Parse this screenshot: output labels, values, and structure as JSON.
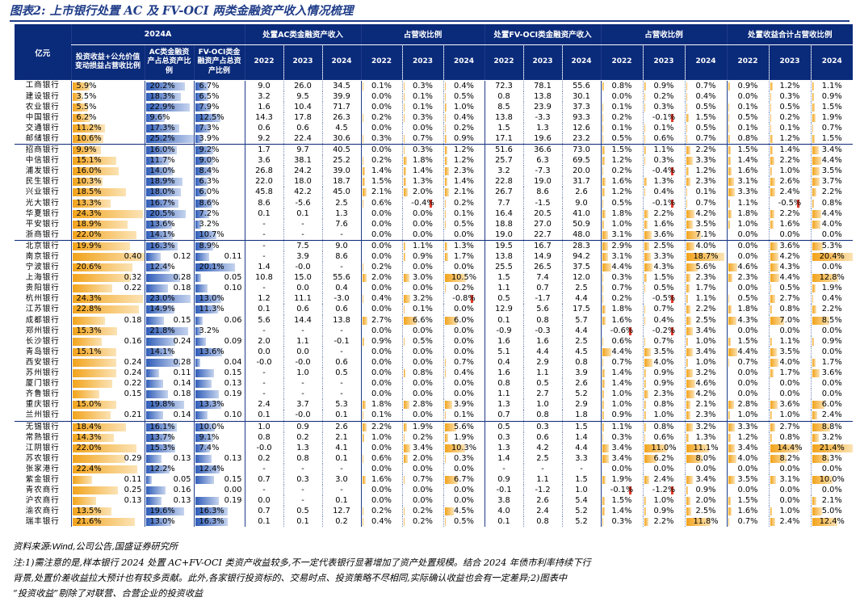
{
  "title": "图表2: 上市银行处置 AC 及 FV-OCI 两类金融资产收入情况梳理",
  "header": {
    "unit": "亿元",
    "g2024": "2024A",
    "gAC": "处置AC类金融资产收入",
    "gACr": "占营收比例",
    "gFV": "处置FV-OCI类金融资产收入",
    "gFVr": "占营收比例",
    "gTot": "处置收益合计占营收比例",
    "c1": "投资收益+公允价值变动损益占营收比例",
    "c2": "AC类金融资产占总资产比例",
    "c3": "FV-OCI类金融资产占总资产比例",
    "years": [
      "2022",
      "2023",
      "2024"
    ]
  },
  "rows": [
    [
      "工商银行",
      "5.9%",
      "20.2%",
      "6.7%",
      "9.0",
      "26.0",
      "34.5",
      "0.1%",
      "0.3%",
      "0.4%",
      "72.3",
      "78.1",
      "55.6",
      "0.8%",
      "0.9%",
      "0.7%",
      "0.9%",
      "1.2%",
      "1.1%"
    ],
    [
      "建设银行",
      "3.5%",
      "18.3%",
      "6.5%",
      "3.2",
      "9.5",
      "39.9",
      "0.0%",
      "0.1%",
      "0.5%",
      "0.8",
      "13.8",
      "30.1",
      "0.0%",
      "0.2%",
      "0.4%",
      "0.0%",
      "0.3%",
      "0.9%"
    ],
    [
      "农业银行",
      "5.5%",
      "22.9%",
      "7.9%",
      "1.6",
      "10.4",
      "71.7",
      "0.0%",
      "0.1%",
      "1.0%",
      "8.5",
      "23.9",
      "37.3",
      "0.1%",
      "0.3%",
      "0.5%",
      "0.1%",
      "0.5%",
      "1.5%"
    ],
    [
      "中国银行",
      "6.2%",
      "9.6%",
      "12.5%",
      "14.3",
      "17.8",
      "26.3",
      "0.2%",
      "0.3%",
      "0.4%",
      "13.8",
      "-3.3",
      "93.3",
      "0.2%",
      "-0.1%",
      "1.5%",
      "0.5%",
      "0.2%",
      "1.9%"
    ],
    [
      "交通银行",
      "11.2%",
      "17.3%",
      "7.3%",
      "0.6",
      "0.6",
      "4.5",
      "0.0%",
      "0.0%",
      "0.2%",
      "1.5",
      "1.3",
      "12.6",
      "0.1%",
      "0.1%",
      "0.5%",
      "0.1%",
      "0.1%",
      "0.7%"
    ],
    [
      "邮储银行",
      "10.6%",
      "25.2%",
      "3.9%",
      "9.2",
      "22.4",
      "30.6",
      "0.3%",
      "0.7%",
      "0.9%",
      "17.1",
      "19.6",
      "23.2",
      "0.5%",
      "0.6%",
      "0.7%",
      "0.8%",
      "1.2%",
      "1.5%"
    ],
    [
      "招商银行",
      "9.9%",
      "16.0%",
      "9.2%",
      "1.7",
      "9.7",
      "40.5",
      "0.0%",
      "0.3%",
      "1.2%",
      "51.6",
      "36.6",
      "73.0",
      "1.5%",
      "1.1%",
      "2.2%",
      "1.5%",
      "1.4%",
      "3.4%"
    ],
    [
      "中信银行",
      "15.1%",
      "11.7%",
      "9.0%",
      "3.6",
      "38.1",
      "25.2",
      "0.2%",
      "1.8%",
      "1.2%",
      "25.7",
      "6.3",
      "69.5",
      "1.2%",
      "0.3%",
      "3.3%",
      "1.4%",
      "2.2%",
      "4.4%"
    ],
    [
      "浦发银行",
      "16.0%",
      "14.0%",
      "8.4%",
      "26.8",
      "24.2",
      "39.0",
      "1.4%",
      "1.4%",
      "2.3%",
      "3.2",
      "-7.3",
      "20.0",
      "0.2%",
      "-0.4%",
      "1.2%",
      "1.6%",
      "1.0%",
      "3.5%"
    ],
    [
      "民生银行",
      "10.3%",
      "18.9%",
      "6.3%",
      "22.0",
      "18.0",
      "18.7",
      "1.5%",
      "1.3%",
      "1.4%",
      "22.8",
      "19.0",
      "31.7",
      "1.6%",
      "1.3%",
      "2.3%",
      "3.1%",
      "2.6%",
      "3.7%"
    ],
    [
      "兴业银行",
      "18.5%",
      "18.0%",
      "6.0%",
      "45.8",
      "42.2",
      "45.0",
      "2.1%",
      "2.0%",
      "2.1%",
      "26.7",
      "8.6",
      "2.6",
      "1.2%",
      "0.4%",
      "0.1%",
      "3.3%",
      "2.4%",
      "2.2%"
    ],
    [
      "光大银行",
      "13.3%",
      "16.7%",
      "8.6%",
      "8.6",
      "-5.6",
      "2.5",
      "0.6%",
      "-0.4%",
      "0.2%",
      "7.7",
      "-1.5",
      "9.0",
      "0.5%",
      "-0.1%",
      "0.7%",
      "1.1%",
      "-0.5%",
      "0.8%"
    ],
    [
      "华夏银行",
      "24.3%",
      "20.5%",
      "7.2%",
      "0.1",
      "0.1",
      "1.3",
      "0.0%",
      "0.0%",
      "0.1%",
      "16.4",
      "20.5",
      "41.0",
      "1.8%",
      "2.2%",
      "4.2%",
      "1.8%",
      "2.2%",
      "4.4%"
    ],
    [
      "平安银行",
      "18.9%",
      "13.6%",
      "3.2%",
      "-",
      "-",
      "7.6",
      "0.0%",
      "0.0%",
      "0.5%",
      "18.8",
      "27.0",
      "50.9",
      "1.0%",
      "1.6%",
      "3.5%",
      "1.0%",
      "1.6%",
      "4.0%"
    ],
    [
      "浙商银行",
      "22.0%",
      "14.1%",
      "10.7%",
      "-",
      "-",
      "-",
      "0.0%",
      "0.0%",
      "0.0%",
      "19.0",
      "22.7",
      "48.0",
      "3.1%",
      "3.6%",
      "7.1%",
      "0.0%",
      "0.0%",
      "0.0%"
    ],
    [
      "北京银行",
      "19.9%",
      "16.3%",
      "8.9%",
      "-",
      "7.5",
      "9.0",
      "0.0%",
      "1.1%",
      "1.3%",
      "19.5",
      "16.7",
      "28.3",
      "2.9%",
      "2.5%",
      "4.0%",
      "0.0%",
      "3.6%",
      "5.3%"
    ],
    [
      "南京银行",
      "0.40",
      "0.12",
      "0.11",
      "-",
      "3.9",
      "8.6",
      "0.0%",
      "0.9%",
      "1.7%",
      "13.8",
      "14.9",
      "94.2",
      "3.1%",
      "3.3%",
      "18.7%",
      "0.0%",
      "4.2%",
      "20.4%"
    ],
    [
      "宁波银行",
      "20.6%",
      "12.4%",
      "20.1%",
      "1.4",
      "-0.0",
      "-",
      "0.2%",
      "0.0%",
      "0.0%",
      "25.5",
      "26.5",
      "37.5",
      "4.4%",
      "4.3%",
      "5.6%",
      "4.6%",
      "4.3%",
      "0.0%"
    ],
    [
      "上海银行",
      "0.32",
      "0.28",
      "0.05",
      "10.8",
      "15.0",
      "55.6",
      "2.0%",
      "3.0%",
      "10.5%",
      "1.5",
      "7.4",
      "12.0",
      "0.3%",
      "1.5%",
      "2.3%",
      "2.3%",
      "4.4%",
      "12.8%"
    ],
    [
      "贵阳银行",
      "0.22",
      "0.18",
      "0.10",
      "-",
      "0.0",
      "0.4",
      "0.0%",
      "0.0%",
      "0.2%",
      "1.1",
      "0.7",
      "2.5",
      "0.7%",
      "0.5%",
      "1.7%",
      "0.0%",
      "0.5%",
      "1.9%"
    ],
    [
      "杭州银行",
      "24.3%",
      "23.0%",
      "13.0%",
      "1.2",
      "11.1",
      "-3.0",
      "0.4%",
      "3.2%",
      "-0.8%",
      "0.5",
      "-1.7",
      "4.4",
      "0.2%",
      "-0.5%",
      "1.1%",
      "0.5%",
      "2.7%",
      "0.4%"
    ],
    [
      "江苏银行",
      "22.8%",
      "14.9%",
      "11.3%",
      "0.1",
      "0.6",
      "0.6",
      "0.0%",
      "0.1%",
      "0.0%",
      "12.9",
      "5.6",
      "17.5",
      "1.8%",
      "0.7%",
      "2.2%",
      "1.8%",
      "0.8%",
      "2.2%"
    ],
    [
      "成都银行",
      "0.18",
      "0.15",
      "0.06",
      "5.6",
      "14.4",
      "13.8",
      "2.7%",
      "6.6%",
      "6.0%",
      "0.1",
      "0.8",
      "5.7",
      "1.6%",
      "0.4%",
      "2.5%",
      "4.3%",
      "7.0%",
      "8.5%"
    ],
    [
      "郑州银行",
      "15.3%",
      "21.8%",
      "3.2%",
      "-",
      "-",
      "-",
      "0.0%",
      "0.0%",
      "0.0%",
      "-0.9",
      "-0.3",
      "4.4",
      "-0.6%",
      "-0.2%",
      "3.4%",
      "0.0%",
      "0.0%",
      "0.0%"
    ],
    [
      "长沙银行",
      "0.16",
      "0.24",
      "0.09",
      "2.0",
      "1.1",
      "-0.1",
      "0.9%",
      "0.5%",
      "0.0%",
      "1.6",
      "1.6",
      "2.5",
      "0.6%",
      "0.7%",
      "1.0%",
      "1.5%",
      "1.1%",
      "0.9%"
    ],
    [
      "青岛银行",
      "15.1%",
      "14.1%",
      "13.6%",
      "0.0",
      "0.0",
      "-",
      "0.0%",
      "0.0%",
      "0.0%",
      "5.1",
      "4.4",
      "4.5",
      "4.4%",
      "3.5%",
      "3.4%",
      "4.4%",
      "3.5%",
      "0.0%"
    ],
    [
      "西安银行",
      "0.24",
      "0.28",
      "0.04",
      "-0.0",
      "-0.0",
      "0.6",
      "0.0%",
      "0.0%",
      "0.7%",
      "0.4",
      "2.9",
      "0.8",
      "0.7%",
      "4.0%",
      "1.0%",
      "0.7%",
      "4.0%",
      "1.7%"
    ],
    [
      "苏州银行",
      "0.24",
      "0.11",
      "0.15",
      "-",
      "1.0",
      "0.5",
      "0.0%",
      "0.8%",
      "0.4%",
      "1.6",
      "1.1",
      "3.9",
      "1.4%",
      "0.9%",
      "3.2%",
      "0.0%",
      "1.7%",
      "3.6%"
    ],
    [
      "厦门银行",
      "0.22",
      "0.14",
      "0.13",
      "-",
      "-",
      "-",
      "0.0%",
      "0.0%",
      "0.0%",
      "0.8",
      "0.5",
      "2.6",
      "1.4%",
      "0.9%",
      "4.6%",
      "0.0%",
      "0.0%",
      "0.0%"
    ],
    [
      "齐鲁银行",
      "0.15",
      "0.18",
      "0.19",
      "-",
      "-",
      "-",
      "0.0%",
      "0.0%",
      "0.0%",
      "1.1",
      "2.7",
      "5.2",
      "1.0%",
      "2.3%",
      "4.2%",
      "0.0%",
      "0.0%",
      "0.0%"
    ],
    [
      "重庆银行",
      "15.0%",
      "19.8%",
      "13.3%",
      "2.4",
      "3.7",
      "5.3",
      "1.8%",
      "2.8%",
      "3.9%",
      "1.3",
      "1.0",
      "2.9",
      "1.0%",
      "0.8%",
      "2.1%",
      "2.8%",
      "3.6%",
      "6.0%"
    ],
    [
      "兰州银行",
      "0.21",
      "0.14",
      "0.10",
      "0.1",
      "-0.0",
      "0.1",
      "0.1%",
      "0.0%",
      "0.1%",
      "0.7",
      "0.8",
      "1.8",
      "0.9%",
      "1.0%",
      "2.3%",
      "1.0%",
      "1.0%",
      "2.4%"
    ],
    [
      "无锡银行",
      "18.4%",
      "16.1%",
      "10.0%",
      "1.0",
      "0.9",
      "2.6",
      "2.2%",
      "1.9%",
      "5.6%",
      "0.5",
      "0.3",
      "1.5",
      "1.1%",
      "0.8%",
      "3.2%",
      "3.3%",
      "2.7%",
      "8.8%"
    ],
    [
      "常熟银行",
      "14.3%",
      "13.7%",
      "9.1%",
      "0.8",
      "0.2",
      "2.1",
      "1.0%",
      "0.2%",
      "1.9%",
      "0.3",
      "0.6",
      "1.4",
      "0.3%",
      "0.6%",
      "1.3%",
      "1.2%",
      "0.8%",
      "3.2%"
    ],
    [
      "江阴银行",
      "22.0%",
      "15.3%",
      "7.4%",
      "-0.0",
      "1.3",
      "4.1",
      "0.0%",
      "3.4%",
      "10.3%",
      "1.3",
      "4.2",
      "4.4",
      "3.4%",
      "11.0%",
      "11.1%",
      "3.4%",
      "14.4%",
      "21.4%"
    ],
    [
      "苏农银行",
      "0.29",
      "0.13",
      "0.13",
      "0.2",
      "0.8",
      "0.1",
      "0.6%",
      "2.0%",
      "0.3%",
      "1.4",
      "2.5",
      "3.3",
      "3.4%",
      "6.2%",
      "8.0%",
      "4.0%",
      "8.2%",
      "8.3%"
    ],
    [
      "张家港行",
      "22.4%",
      "12.2%",
      "12.4%",
      "-",
      "-",
      "-",
      "0.0%",
      "0.0%",
      "0.0%",
      "-",
      "-",
      "-",
      "0.0%",
      "0.0%",
      "0.0%",
      "0.0%",
      "0.0%",
      "0.0%"
    ],
    [
      "紫金银行",
      "0.11",
      "0.05",
      "0.15",
      "0.7",
      "0.3",
      "3.0",
      "1.6%",
      "0.7%",
      "6.7%",
      "0.9",
      "1.1",
      "1.5",
      "1.9%",
      "2.4%",
      "3.4%",
      "3.5%",
      "3.1%",
      "10.0%"
    ],
    [
      "青农商行",
      "0.25",
      "0.16",
      "0.00",
      "-",
      "-",
      "-",
      "0.0%",
      "0.0%",
      "0.0%",
      "-0.1",
      "-1.2",
      "1.0",
      "-0.1%",
      "-1.2%",
      "0.9%",
      "0.0%",
      "0.0%",
      "0.0%"
    ],
    [
      "沪农商行",
      "0.13",
      "0.13",
      "0.19",
      "0.0",
      "-",
      "0.1",
      "0.0%",
      "0.0%",
      "0.0%",
      "3.8",
      "2.6",
      "5.4",
      "1.5%",
      "1.0%",
      "2.0%",
      "1.5%",
      "0.0%",
      "2.1%"
    ],
    [
      "渝农商行",
      "13.5%",
      "19.6%",
      "16.3%",
      "0.7",
      "0.5",
      "12.7",
      "0.2%",
      "0.2%",
      "4.5%",
      "4.0",
      "2.4",
      "5.2",
      "1.4%",
      "0.9%",
      "2.5%",
      "1.6%",
      "1.0%",
      "5.0%"
    ],
    [
      "瑞丰银行",
      "21.6%",
      "13.0%",
      "16.3%",
      "0.1",
      "0.1",
      "0.2",
      "0.4%",
      "0.2%",
      "0.5%",
      "0.1",
      "0.8",
      "5.2",
      "0.3%",
      "2.2%",
      "11.8%",
      "0.7%",
      "2.4%",
      "12.4%"
    ]
  ],
  "source_label": "资料来源:",
  "source_wind": "Wind",
  "source_rest": ",公司公告,国盛证券研究所",
  "note_1": "注:1)需注意的是,样本银行 2024 处置 AC+FV-OCI 类资产收益较多,不一定代表银行显著增加了资产处置规模。结合 2024 年债市利率持续下行",
  "note_2": "背景,处置价差收益拉大预计也有较多贡献。此外,各家银行投资标的、交易时点、投资策略不尽相同,实际确认收益也会有一定差异;2)图表中",
  "note_3": "“投资收益”剔除了对联营、合营企业的投资收益",
  "colors": {
    "header": "#0a2a7a",
    "orange": "#f2a31b",
    "blue": "#2e5cb8",
    "negative": "#e23a2a"
  }
}
